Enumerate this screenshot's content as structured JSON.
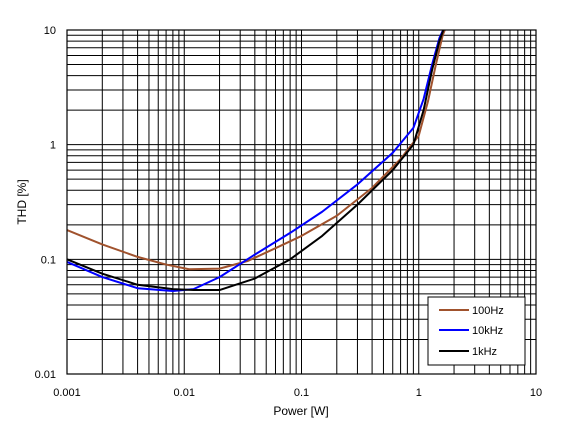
{
  "chart_data": {
    "type": "line",
    "title": "",
    "xlabel": "Power [W]",
    "ylabel": "THD [%]",
    "xscale": "log",
    "yscale": "log",
    "xlim": [
      0.001,
      10
    ],
    "ylim": [
      0.01,
      10
    ],
    "x_tick_labels": [
      "0.001",
      "0.01",
      "0.1",
      "1",
      "10"
    ],
    "y_tick_labels": [
      "0.01",
      "0.1",
      "1",
      "10"
    ],
    "grid": true,
    "legend_position": "bottom-right",
    "series": [
      {
        "name": "100Hz",
        "color": "#a0522d",
        "points": [
          [
            0.001,
            0.18
          ],
          [
            0.002,
            0.135
          ],
          [
            0.004,
            0.105
          ],
          [
            0.007,
            0.09
          ],
          [
            0.011,
            0.082
          ],
          [
            0.02,
            0.083
          ],
          [
            0.035,
            0.097
          ],
          [
            0.06,
            0.125
          ],
          [
            0.1,
            0.16
          ],
          [
            0.2,
            0.24
          ],
          [
            0.4,
            0.42
          ],
          [
            0.7,
            0.75
          ],
          [
            1.0,
            1.2
          ],
          [
            1.2,
            2.4
          ],
          [
            1.4,
            5.0
          ],
          [
            1.6,
            9.0
          ],
          [
            1.7,
            10.5
          ]
        ]
      },
      {
        "name": "10kHz",
        "color": "#0000ff",
        "points": [
          [
            0.001,
            0.095
          ],
          [
            0.002,
            0.07
          ],
          [
            0.004,
            0.056
          ],
          [
            0.008,
            0.053
          ],
          [
            0.012,
            0.055
          ],
          [
            0.02,
            0.07
          ],
          [
            0.04,
            0.11
          ],
          [
            0.08,
            0.17
          ],
          [
            0.15,
            0.26
          ],
          [
            0.3,
            0.45
          ],
          [
            0.6,
            0.85
          ],
          [
            0.9,
            1.4
          ],
          [
            1.1,
            2.5
          ],
          [
            1.3,
            5.0
          ],
          [
            1.5,
            8.5
          ],
          [
            1.65,
            10.5
          ]
        ]
      },
      {
        "name": "1kHz",
        "color": "#000000",
        "points": [
          [
            0.001,
            0.1
          ],
          [
            0.002,
            0.075
          ],
          [
            0.004,
            0.06
          ],
          [
            0.008,
            0.055
          ],
          [
            0.012,
            0.054
          ],
          [
            0.02,
            0.054
          ],
          [
            0.04,
            0.068
          ],
          [
            0.08,
            0.1
          ],
          [
            0.15,
            0.16
          ],
          [
            0.3,
            0.3
          ],
          [
            0.6,
            0.6
          ],
          [
            0.9,
            1.0
          ],
          [
            1.1,
            2.0
          ],
          [
            1.3,
            4.5
          ],
          [
            1.5,
            8.0
          ],
          [
            1.65,
            10.5
          ]
        ]
      }
    ]
  }
}
